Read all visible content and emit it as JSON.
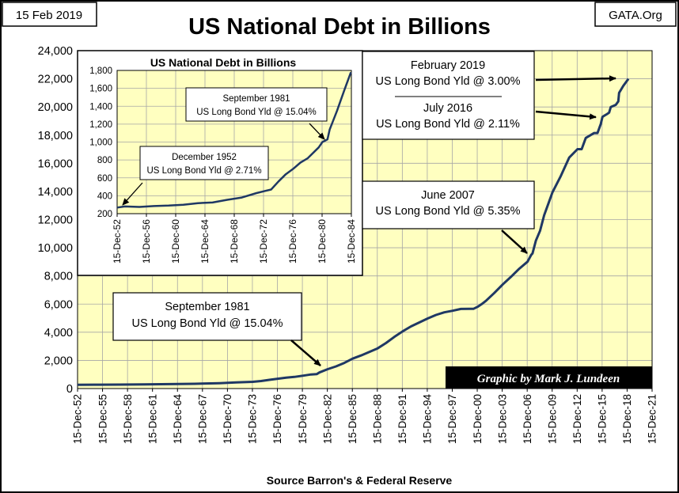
{
  "header": {
    "date": "15 Feb 2019",
    "title": "US National Debt in Billions",
    "site": "GATA.Org"
  },
  "source": "Source Barron's & Federal Reserve",
  "credit": "Graphic by Mark J. Lundeen",
  "colors": {
    "plot_bg": "#FFFFC0",
    "line": "#1F3864",
    "grid": "#A6A6A6",
    "credit_bg": "#000000",
    "credit_fg": "#FFFFFF"
  },
  "annotations": {
    "feb2019": {
      "line1": "February 2019",
      "line2": "US Long Bond Yld @ 3.00%"
    },
    "jul2016": {
      "line1": "July 2016",
      "line2": "US Long Bond Yld @ 2.11%"
    },
    "jun2007": {
      "line1": "June 2007",
      "line2": "US Long Bond Yld @ 5.35%"
    },
    "sep1981": {
      "line1": "September 1981",
      "line2": "US Long Bond Yld @ 15.04%"
    }
  },
  "inset_annotations": {
    "sep1981": {
      "line1": "September 1981",
      "line2": "US Long Bond Yld @ 15.04%"
    },
    "dec1952": {
      "line1": "December 1952",
      "line2": "US Long Bond Yld @ 2.71%"
    }
  },
  "chart_data": [
    {
      "type": "line",
      "title": "US National Debt in Billions",
      "xlabel": "",
      "ylabel": "",
      "grid": true,
      "xlim": [
        1952.96,
        2021.96
      ],
      "ylim": [
        0,
        24000
      ],
      "yticks": [
        0,
        2000,
        4000,
        6000,
        8000,
        10000,
        12000,
        14000,
        16000,
        18000,
        20000,
        22000,
        24000
      ],
      "ytick_labels": [
        "0",
        "2,000",
        "4,000",
        "6,000",
        "8,000",
        "10,000",
        "12,000",
        "14,000",
        "16,000",
        "18,000",
        "20,000",
        "22,000",
        "24,000"
      ],
      "xtick_labels": [
        "15-Dec-52",
        "15-Dec-55",
        "15-Dec-58",
        "15-Dec-61",
        "15-Dec-64",
        "15-Dec-67",
        "15-Dec-70",
        "15-Dec-73",
        "15-Dec-76",
        "15-Dec-79",
        "15-Dec-82",
        "15-Dec-85",
        "15-Dec-88",
        "15-Dec-91",
        "15-Dec-94",
        "15-Dec-97",
        "15-Dec-00",
        "15-Dec-03",
        "15-Dec-06",
        "15-Dec-09",
        "15-Dec-12",
        "15-Dec-15",
        "15-Dec-18",
        "15-Dec-21"
      ],
      "series": [
        {
          "name": "US National Debt",
          "x": [
            1952.96,
            1955,
            1958,
            1961,
            1964,
            1967,
            1970,
            1972,
            1973,
            1974,
            1975,
            1976,
            1977,
            1978,
            1979,
            1980,
            1981,
            1981.7,
            1982,
            1983,
            1984,
            1985,
            1986,
            1987,
            1988,
            1989,
            1990,
            1991,
            1992,
            1993,
            1994,
            1995,
            1996,
            1997,
            1998,
            1999,
            2000,
            2000.5,
            2001,
            2001.5,
            2002,
            2003,
            2004,
            2005,
            2006,
            2007,
            2007.45,
            2007.6,
            2008,
            2008.5,
            2009,
            2010,
            2011,
            2012,
            2013,
            2013.5,
            2014,
            2015,
            2015.4,
            2015.8,
            2016,
            2016.55,
            2016.8,
            2017,
            2017.6,
            2017.9,
            2018,
            2018.5,
            2019.12
          ],
          "values": [
            266,
            274,
            283,
            290,
            316,
            340,
            382,
            435,
            458,
            475,
            533,
            620,
            699,
            772,
            827,
            908,
            998,
            1030,
            1140,
            1377,
            1572,
            1823,
            2125,
            2350,
            2602,
            2857,
            3233,
            3665,
            4065,
            4411,
            4693,
            4974,
            5225,
            5413,
            5526,
            5656,
            5662,
            5660,
            5807,
            6000,
            6228,
            6783,
            7379,
            7933,
            8507,
            9008,
            9500,
            9600,
            10500,
            11200,
            12311,
            13950,
            15100,
            16400,
            17000,
            17000,
            17800,
            18150,
            18150,
            18800,
            19300,
            19500,
            19600,
            20000,
            20150,
            20400,
            21000,
            21500,
            22000
          ]
        }
      ]
    },
    {
      "type": "line",
      "title": "US National Debt in Billions",
      "xlabel": "",
      "ylabel": "",
      "grid": true,
      "xlim": [
        1952.96,
        1984.96
      ],
      "ylim": [
        200,
        1800
      ],
      "yticks": [
        200,
        400,
        600,
        800,
        1000,
        1200,
        1400,
        1600,
        1800
      ],
      "ytick_labels": [
        "200",
        "400",
        "600",
        "800",
        "1,000",
        "1,200",
        "1,400",
        "1,600",
        "1,800"
      ],
      "xtick_labels": [
        "15-Dec-52",
        "15-Dec-56",
        "15-Dec-60",
        "15-Dec-64",
        "15-Dec-68",
        "15-Dec-72",
        "15-Dec-76",
        "15-Dec-80",
        "15-Dec-84"
      ],
      "series": [
        {
          "name": "US National Debt",
          "x": [
            1952.96,
            1954,
            1956,
            1958,
            1960,
            1962,
            1964,
            1966,
            1968,
            1970,
            1972,
            1973,
            1974,
            1975,
            1976,
            1977,
            1978,
            1979,
            1980,
            1980.5,
            1981,
            1981.7,
            1982,
            1983,
            1984,
            1984.9
          ],
          "values": [
            268,
            280,
            275,
            285,
            290,
            300,
            318,
            325,
            355,
            380,
            430,
            450,
            470,
            560,
            640,
            700,
            770,
            820,
            900,
            940,
            1000,
            1030,
            1140,
            1350,
            1580,
            1780
          ]
        }
      ]
    }
  ]
}
